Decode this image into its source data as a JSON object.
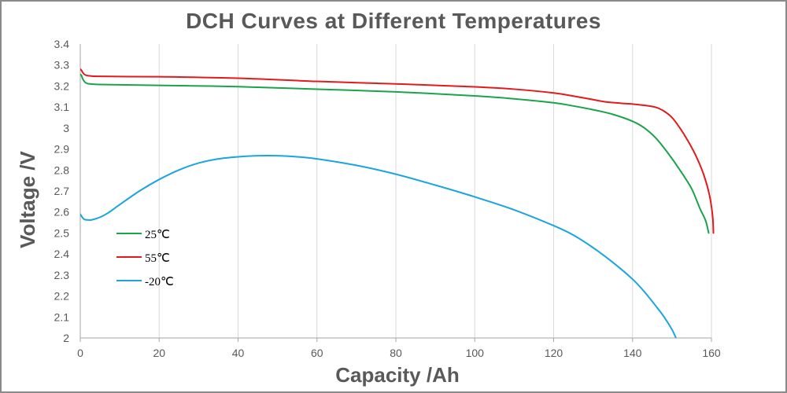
{
  "chart_data": {
    "type": "line",
    "title": "DCH Curves at Different  Temperatures",
    "xlabel": "Capacity /Ah",
    "ylabel": "Voltage /V",
    "xlim": [
      0,
      160
    ],
    "ylim": [
      2,
      3.4
    ],
    "xticks": [
      0,
      20,
      40,
      60,
      80,
      100,
      120,
      140,
      160
    ],
    "xtick_labels": [
      "0",
      "20",
      "40",
      "60",
      "80",
      "100",
      "120",
      "140",
      "160"
    ],
    "yticks": [
      2,
      2.1,
      2.2,
      2.3,
      2.4,
      2.5,
      2.6,
      2.7,
      2.8,
      2.9,
      3,
      3.1,
      3.2,
      3.3,
      3.4
    ],
    "ytick_labels": [
      "2",
      "2.1",
      "2.2",
      "2.3",
      "2.4",
      "2.5",
      "2.6",
      "2.7",
      "2.8",
      "2.9",
      "3",
      "3.1",
      "3.2",
      "3.3",
      "3.4"
    ],
    "grid": "vertical",
    "legend_position": "left",
    "series": [
      {
        "name": "25℃",
        "color": "#1aa34a",
        "x": [
          0,
          0.3,
          0.6,
          1,
          1.5,
          2,
          3,
          5,
          10,
          20,
          40,
          60,
          80,
          100,
          110,
          120,
          125,
          130,
          135,
          140,
          143,
          146,
          149,
          152,
          155,
          157,
          158.5,
          159.3
        ],
        "y": [
          3.255,
          3.25,
          3.235,
          3.222,
          3.214,
          3.211,
          3.209,
          3.207,
          3.206,
          3.203,
          3.197,
          3.185,
          3.172,
          3.153,
          3.139,
          3.12,
          3.105,
          3.087,
          3.065,
          3.032,
          3.0,
          2.95,
          2.88,
          2.8,
          2.71,
          2.62,
          2.56,
          2.5
        ]
      },
      {
        "name": "55℃",
        "color": "#e31a1c",
        "x": [
          0,
          0.3,
          0.6,
          1,
          1.5,
          2,
          3,
          5,
          10,
          20,
          40,
          60,
          80,
          100,
          110,
          120,
          125,
          130,
          133,
          137,
          140,
          143,
          146,
          148,
          150,
          152,
          154,
          156,
          158,
          159.5,
          160.3,
          160.5
        ],
        "y": [
          3.28,
          3.275,
          3.265,
          3.256,
          3.251,
          3.249,
          3.247,
          3.246,
          3.245,
          3.244,
          3.237,
          3.222,
          3.21,
          3.196,
          3.185,
          3.167,
          3.152,
          3.135,
          3.125,
          3.118,
          3.114,
          3.108,
          3.098,
          3.08,
          3.05,
          3.0,
          2.94,
          2.87,
          2.78,
          2.68,
          2.58,
          2.5
        ]
      },
      {
        "name": "-20℃",
        "color": "#1aa5e0",
        "x": [
          0,
          0.5,
          1,
          2,
          3,
          5,
          7,
          10,
          15,
          20,
          25,
          30,
          35,
          40,
          45,
          50,
          55,
          60,
          70,
          80,
          90,
          100,
          110,
          120,
          125,
          130,
          135,
          140,
          143,
          146,
          148,
          150,
          151
        ],
        "y": [
          2.59,
          2.575,
          2.565,
          2.562,
          2.563,
          2.575,
          2.595,
          2.635,
          2.7,
          2.755,
          2.8,
          2.833,
          2.853,
          2.863,
          2.868,
          2.868,
          2.863,
          2.853,
          2.822,
          2.78,
          2.728,
          2.672,
          2.61,
          2.535,
          2.49,
          2.43,
          2.36,
          2.28,
          2.22,
          2.15,
          2.1,
          2.04,
          2.0
        ]
      }
    ]
  }
}
